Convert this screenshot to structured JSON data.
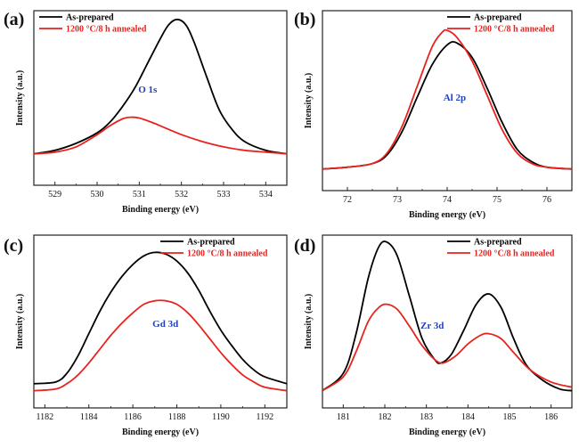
{
  "chart_data": [
    {
      "type": "line",
      "panel_label": "(a)",
      "annotation": "O 1s",
      "xlabel": "Binding energy (eV)",
      "ylabel": "Intensity (a.u.)",
      "xlim": [
        528.5,
        534.5
      ],
      "ylim": [
        0,
        1
      ],
      "xticks": [
        529,
        530,
        531,
        532,
        533,
        534
      ],
      "legend_position": "top-left",
      "series": [
        {
          "name": "As-prepared",
          "color": "#000000",
          "x": [
            528.5,
            529.0,
            529.5,
            530.0,
            530.3,
            530.6,
            530.9,
            531.2,
            531.5,
            531.7,
            531.9,
            532.1,
            532.3,
            532.6,
            532.9,
            533.2,
            533.5,
            534.0,
            534.5
          ],
          "y": [
            0.18,
            0.2,
            0.24,
            0.3,
            0.36,
            0.45,
            0.56,
            0.7,
            0.84,
            0.92,
            0.95,
            0.92,
            0.82,
            0.62,
            0.43,
            0.32,
            0.25,
            0.2,
            0.18
          ]
        },
        {
          "name": "1200 °C/8 h annealed",
          "color": "#e8231e",
          "x": [
            528.5,
            529.0,
            529.5,
            530.0,
            530.3,
            530.6,
            530.8,
            531.0,
            531.3,
            531.6,
            532.0,
            532.5,
            533.0,
            533.5,
            534.0,
            534.5
          ],
          "y": [
            0.18,
            0.19,
            0.22,
            0.29,
            0.34,
            0.38,
            0.39,
            0.385,
            0.36,
            0.33,
            0.29,
            0.25,
            0.22,
            0.2,
            0.19,
            0.18
          ]
        }
      ]
    },
    {
      "type": "line",
      "panel_label": "(b)",
      "annotation": "Al 2p",
      "xlabel": "Binding energy (eV)",
      "ylabel": "Intensity (a.u.)",
      "xlim": [
        71.5,
        76.5
      ],
      "ylim": [
        0,
        1
      ],
      "xticks": [
        72,
        73,
        74,
        75,
        76
      ],
      "legend_position": "top-right",
      "series": [
        {
          "name": "As-prepared",
          "color": "#000000",
          "x": [
            71.5,
            72.0,
            72.5,
            72.8,
            73.1,
            73.4,
            73.7,
            74.0,
            74.2,
            74.5,
            74.8,
            75.1,
            75.4,
            75.7,
            76.0,
            76.5
          ],
          "y": [
            0.12,
            0.13,
            0.15,
            0.2,
            0.33,
            0.52,
            0.7,
            0.81,
            0.82,
            0.74,
            0.57,
            0.38,
            0.23,
            0.16,
            0.13,
            0.12
          ]
        },
        {
          "name": "1200 °C/8 h annealed",
          "color": "#e8231e",
          "x": [
            71.5,
            72.0,
            72.5,
            72.8,
            73.1,
            73.4,
            73.7,
            73.9,
            74.0,
            74.2,
            74.5,
            74.8,
            75.1,
            75.4,
            75.7,
            76.0,
            76.5
          ],
          "y": [
            0.12,
            0.13,
            0.15,
            0.21,
            0.36,
            0.58,
            0.8,
            0.88,
            0.89,
            0.85,
            0.72,
            0.53,
            0.34,
            0.21,
            0.15,
            0.13,
            0.12
          ]
        }
      ]
    },
    {
      "type": "line",
      "panel_label": "(c)",
      "annotation": "Gd 3d",
      "xlabel": "Binding energy (eV)",
      "ylabel": "Intensity (a.u.)",
      "xlim": [
        1181.5,
        1193
      ],
      "ylim": [
        0,
        1
      ],
      "xticks": [
        1182,
        1184,
        1186,
        1188,
        1190,
        1192
      ],
      "legend_position": "top-right",
      "series": [
        {
          "name": "As-prepared",
          "color": "#000000",
          "x": [
            1181.5,
            1182.5,
            1183.0,
            1183.5,
            1184.0,
            1184.5,
            1185.0,
            1185.5,
            1186.0,
            1186.5,
            1187.0,
            1187.5,
            1188.0,
            1188.5,
            1189.0,
            1189.5,
            1190.0,
            1190.5,
            1191.0,
            1191.5,
            1192.0,
            1193.0
          ],
          "y": [
            0.14,
            0.15,
            0.2,
            0.3,
            0.43,
            0.56,
            0.67,
            0.76,
            0.83,
            0.88,
            0.9,
            0.89,
            0.85,
            0.78,
            0.68,
            0.56,
            0.45,
            0.36,
            0.28,
            0.22,
            0.18,
            0.14
          ]
        },
        {
          "name": "1200 °C/8 h annealed",
          "color": "#e8231e",
          "x": [
            1181.5,
            1182.5,
            1183.0,
            1183.5,
            1184.0,
            1184.5,
            1185.0,
            1185.5,
            1186.0,
            1186.5,
            1187.0,
            1187.5,
            1188.0,
            1188.5,
            1189.0,
            1189.5,
            1190.0,
            1190.5,
            1191.0,
            1191.5,
            1192.0,
            1193.0
          ],
          "y": [
            0.1,
            0.11,
            0.14,
            0.19,
            0.26,
            0.34,
            0.42,
            0.49,
            0.55,
            0.6,
            0.62,
            0.62,
            0.6,
            0.55,
            0.48,
            0.4,
            0.32,
            0.25,
            0.19,
            0.15,
            0.12,
            0.1
          ]
        }
      ]
    },
    {
      "type": "line",
      "panel_label": "(d)",
      "annotation": "Zr 3d",
      "xlabel": "Binding energy (eV)",
      "ylabel": "Intensity (a.u.)",
      "xlim": [
        180.5,
        186.5
      ],
      "ylim": [
        0,
        1
      ],
      "xticks": [
        181,
        182,
        183,
        184,
        185,
        186
      ],
      "legend_position": "top-right",
      "series": [
        {
          "name": "As-prepared",
          "color": "#000000",
          "x": [
            180.5,
            181.0,
            181.3,
            181.6,
            181.85,
            182.05,
            182.3,
            182.6,
            182.9,
            183.2,
            183.35,
            183.6,
            183.9,
            184.2,
            184.5,
            184.8,
            185.1,
            185.4,
            185.8,
            186.2,
            186.5
          ],
          "y": [
            0.1,
            0.2,
            0.42,
            0.75,
            0.93,
            0.96,
            0.88,
            0.64,
            0.4,
            0.28,
            0.26,
            0.31,
            0.45,
            0.6,
            0.66,
            0.58,
            0.4,
            0.25,
            0.16,
            0.11,
            0.1
          ]
        },
        {
          "name": "1200 °C/8 h annealed",
          "color": "#e8231e",
          "x": [
            180.5,
            181.0,
            181.3,
            181.6,
            181.85,
            182.05,
            182.3,
            182.6,
            182.9,
            183.2,
            183.4,
            183.7,
            184.0,
            184.3,
            184.5,
            184.8,
            185.1,
            185.5,
            186.0,
            186.5
          ],
          "y": [
            0.1,
            0.18,
            0.32,
            0.5,
            0.58,
            0.6,
            0.57,
            0.47,
            0.36,
            0.28,
            0.26,
            0.3,
            0.37,
            0.42,
            0.43,
            0.4,
            0.32,
            0.22,
            0.15,
            0.12
          ]
        }
      ]
    }
  ]
}
